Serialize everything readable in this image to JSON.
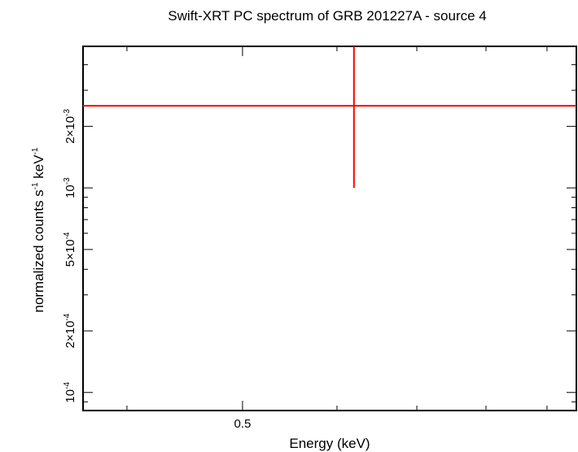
{
  "chart_data": {
    "type": "scatter",
    "title": "Swift-XRT PC spectrum of GRB 201227A - source 4",
    "xlabel": "Energy (keV)",
    "ylabel_parts": [
      "normalized counts s",
      "-1",
      " keV",
      "-1"
    ],
    "x_scale": "log",
    "y_scale": "log",
    "xlim": [
      0.3675,
      0.9525
    ],
    "ylim": [
      8.16e-05,
      0.00492
    ],
    "x_ticks": [
      {
        "value": 0.5,
        "label": "0.5"
      }
    ],
    "y_ticks": [
      {
        "value": 0.0001,
        "mant": "10",
        "exp": "-4"
      },
      {
        "value": 0.0002,
        "mant": "2×10",
        "exp": "-4"
      },
      {
        "value": 0.0005,
        "mant": "5×10",
        "exp": "-4"
      },
      {
        "value": 0.001,
        "mant": "10",
        "exp": "-3"
      },
      {
        "value": 0.002,
        "mant": "2×10",
        "exp": "-3"
      }
    ],
    "grid": false,
    "series": [
      {
        "color": "#ff0000",
        "points": [
          {
            "x": 0.62,
            "x_low": 0.3675,
            "x_high": 0.9525,
            "y": 0.00252,
            "y_low": 0.001,
            "y_high": 0.00492
          }
        ]
      }
    ]
  }
}
